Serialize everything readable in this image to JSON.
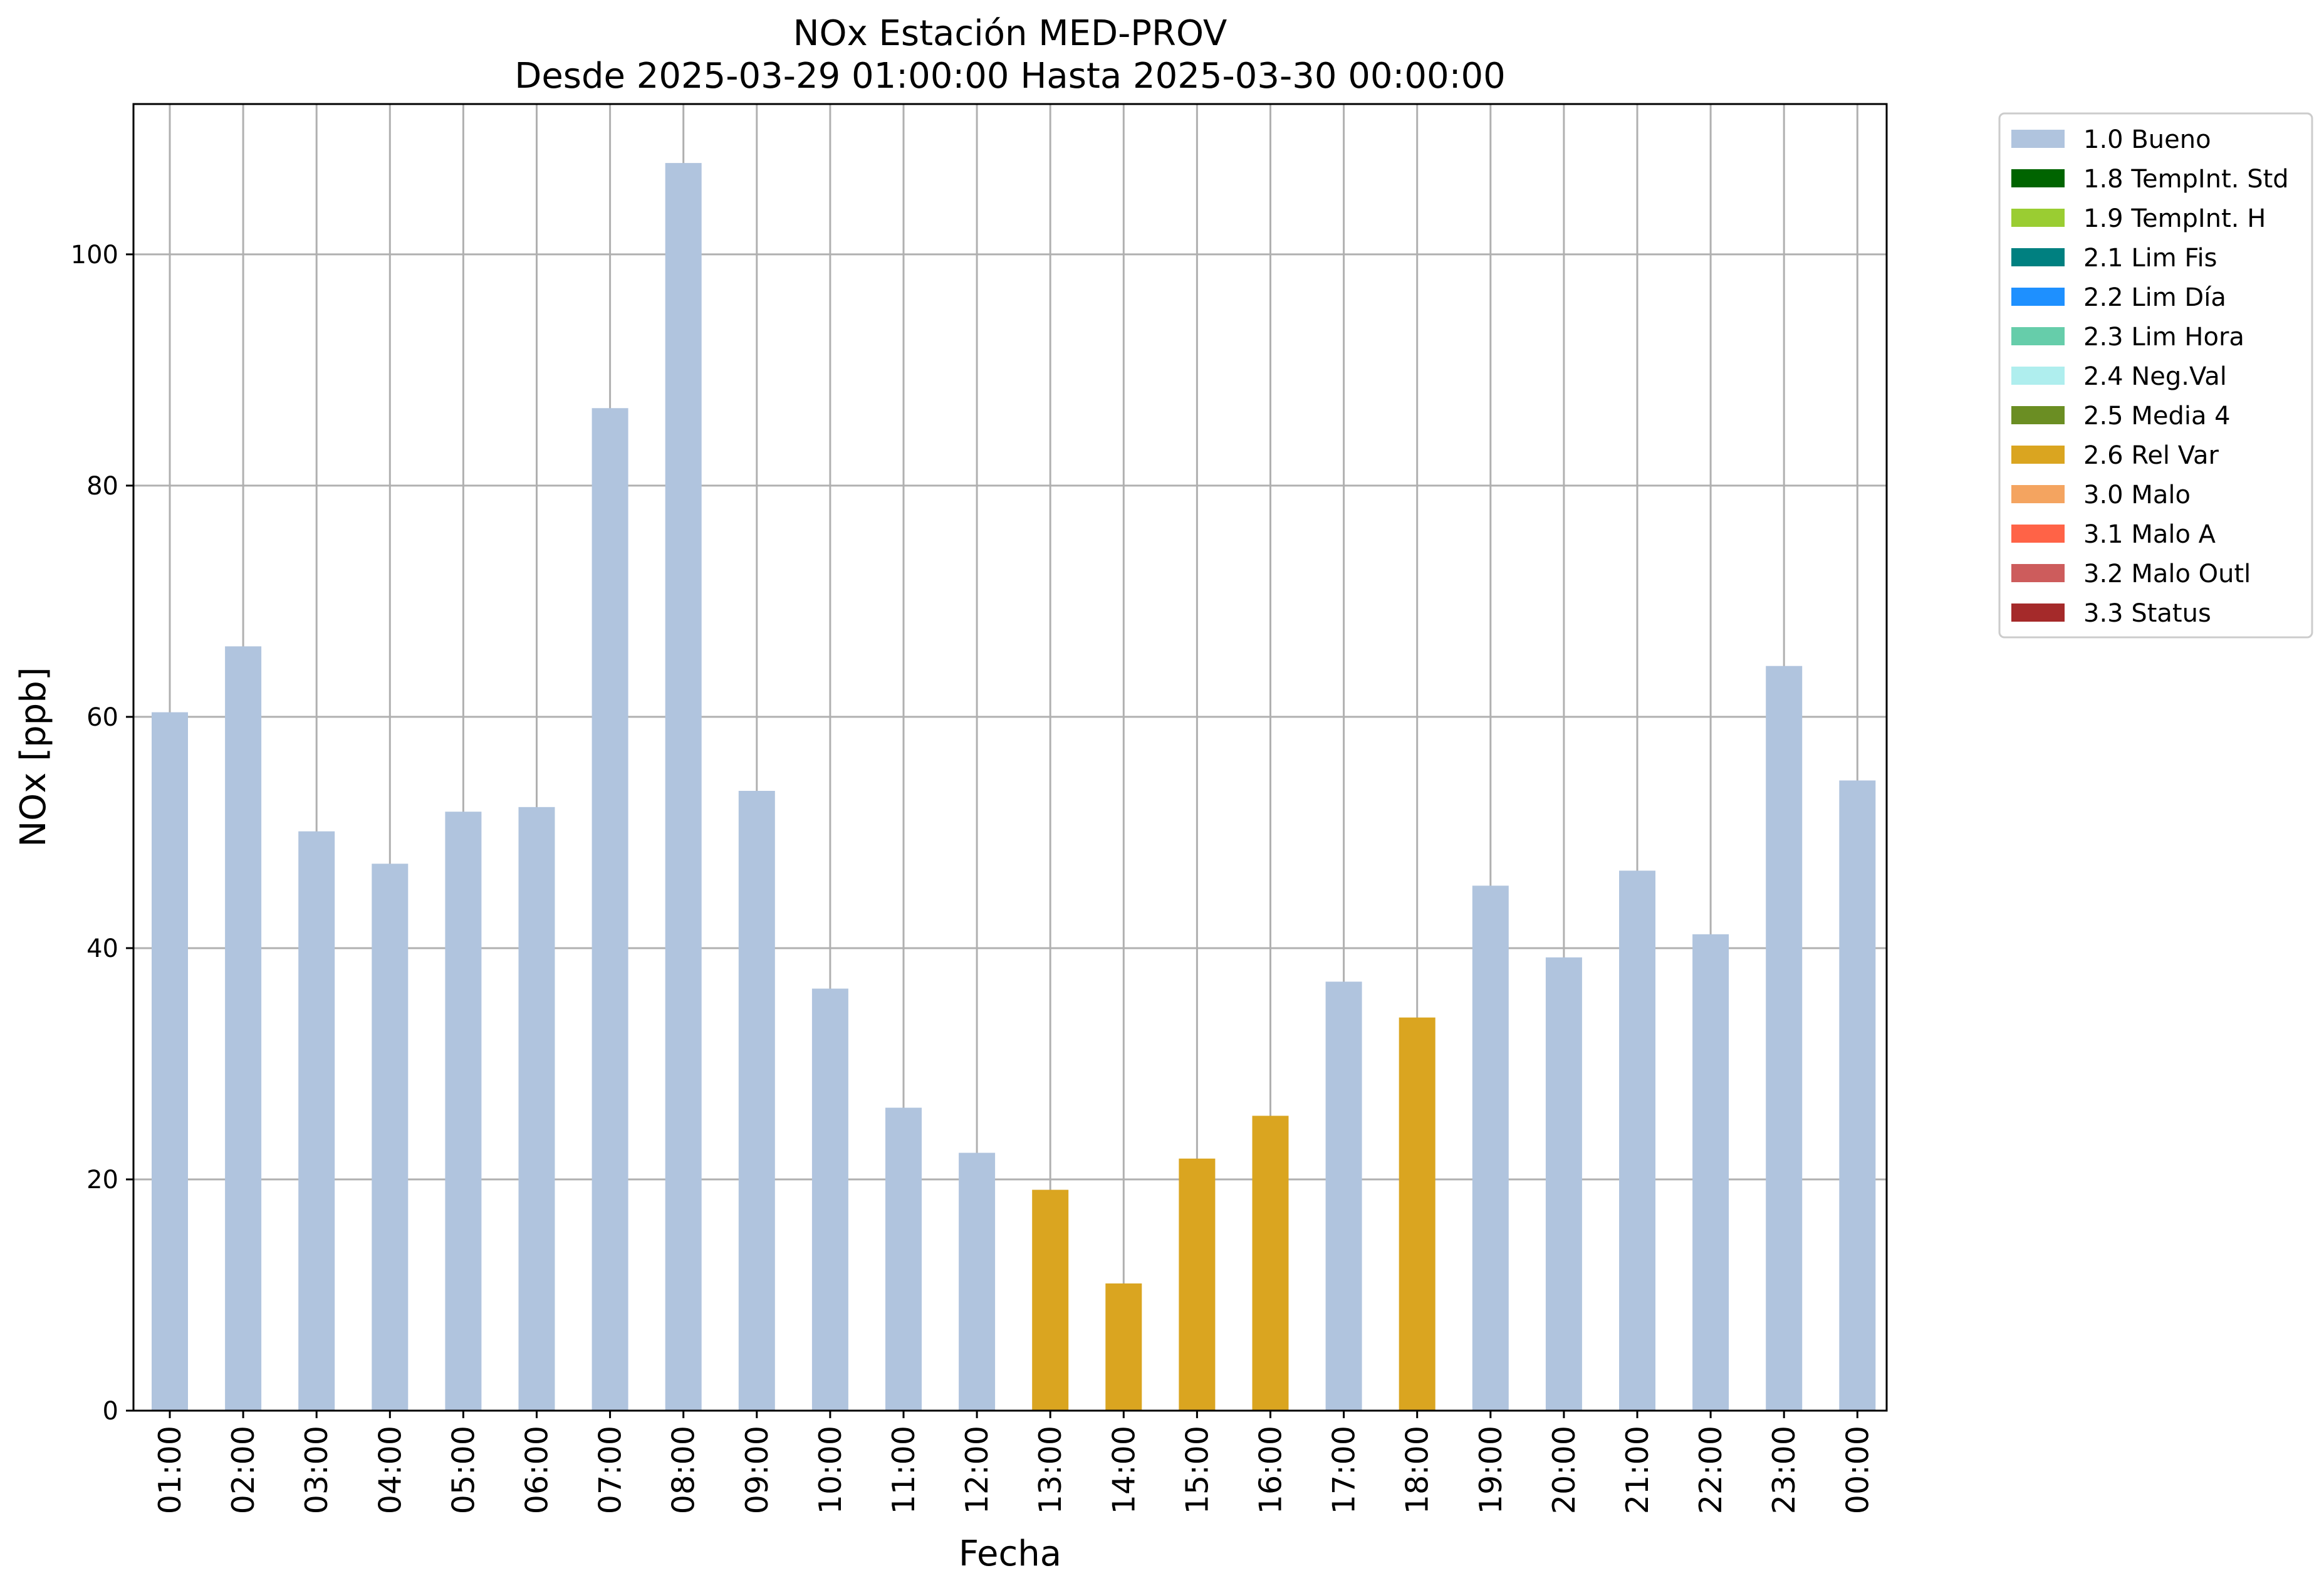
{
  "chart_data": {
    "type": "bar",
    "title": "NOx Estación MED-PROV",
    "subtitle": "Desde 2025-03-29 01:00:00 Hasta 2025-03-30 00:00:00",
    "xlabel": "Fecha",
    "ylabel": "NOx [ppb]",
    "ylim": [
      0,
      113
    ],
    "yticks": [
      0,
      20,
      40,
      60,
      80,
      100
    ],
    "grid": true,
    "legend_position": "outside-top-right",
    "categories": [
      "01:00",
      "02:00",
      "03:00",
      "04:00",
      "05:00",
      "06:00",
      "07:00",
      "08:00",
      "09:00",
      "10:00",
      "11:00",
      "12:00",
      "13:00",
      "14:00",
      "15:00",
      "16:00",
      "17:00",
      "18:00",
      "19:00",
      "20:00",
      "21:00",
      "22:00",
      "23:00",
      "00:00"
    ],
    "values": [
      60.4,
      66.1,
      50.1,
      47.3,
      51.8,
      52.2,
      86.7,
      107.9,
      53.6,
      36.5,
      26.2,
      22.3,
      19.1,
      11.0,
      21.8,
      25.5,
      37.1,
      34.0,
      45.4,
      39.2,
      46.7,
      41.2,
      64.4,
      54.5
    ],
    "flags": [
      "1.0 Bueno",
      "1.0 Bueno",
      "1.0 Bueno",
      "1.0 Bueno",
      "1.0 Bueno",
      "1.0 Bueno",
      "1.0 Bueno",
      "1.0 Bueno",
      "1.0 Bueno",
      "1.0 Bueno",
      "1.0 Bueno",
      "1.0 Bueno",
      "2.6 Rel Var",
      "2.6 Rel Var",
      "2.6 Rel Var",
      "2.6 Rel Var",
      "1.0 Bueno",
      "2.6 Rel Var",
      "1.0 Bueno",
      "1.0 Bueno",
      "1.0 Bueno",
      "1.0 Bueno",
      "1.0 Bueno",
      "1.0 Bueno"
    ],
    "legend": [
      {
        "label": "1.0 Bueno",
        "color": "#b0c4de"
      },
      {
        "label": "1.8 TempInt. Std",
        "color": "#006400"
      },
      {
        "label": "1.9 TempInt. H",
        "color": "#9acd32"
      },
      {
        "label": "2.1 Lim Fis",
        "color": "#008080"
      },
      {
        "label": "2.2 Lim Día",
        "color": "#1e90ff"
      },
      {
        "label": "2.3 Lim Hora",
        "color": "#66cdaa"
      },
      {
        "label": "2.4 Neg.Val",
        "color": "#afeeee"
      },
      {
        "label": "2.5 Media 4",
        "color": "#6b8e23"
      },
      {
        "label": "2.6 Rel Var",
        "color": "#daa520"
      },
      {
        "label": "3.0 Malo",
        "color": "#f4a460"
      },
      {
        "label": "3.1 Malo A",
        "color": "#ff6347"
      },
      {
        "label": "3.2 Malo Outl",
        "color": "#cd5c5c"
      },
      {
        "label": "3.3 Status",
        "color": "#a52a2a"
      }
    ]
  }
}
